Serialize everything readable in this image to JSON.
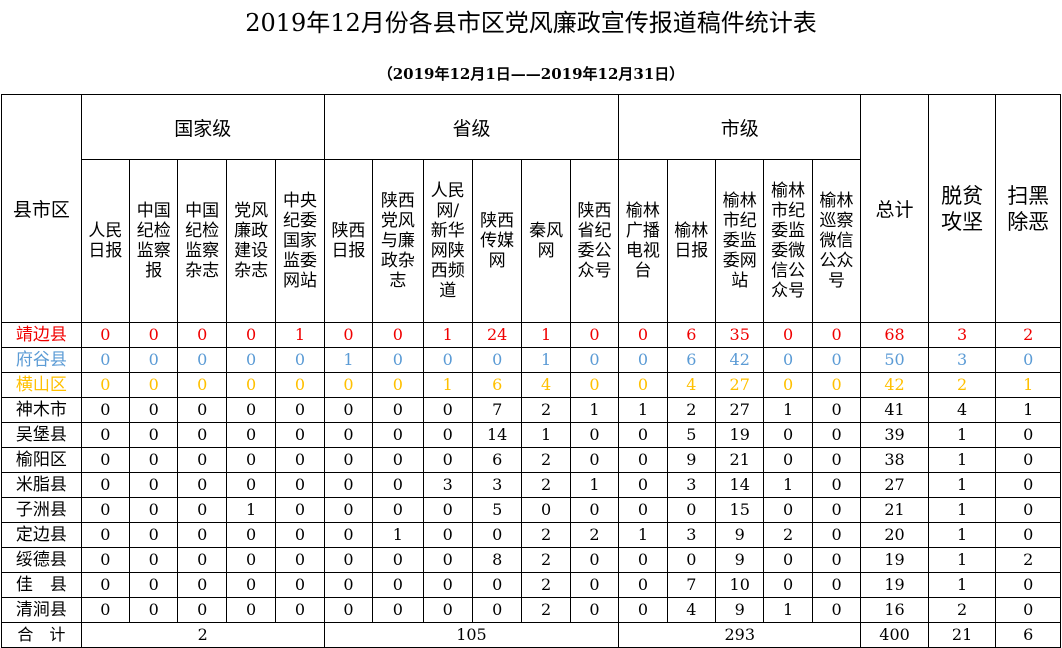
{
  "title": "2019年12月份各县市区党风廉政宣传报道稿件统计表",
  "subtitle": "（2019年12月1日——2019年12月31日）",
  "header": {
    "county_label": "县市区",
    "national_label": "国家级",
    "province_label": "省级",
    "city_label": "市级",
    "columns": [
      "人民\n日报",
      "中国\n纪检\n监察\n报",
      "中国\n纪检\n监察\n杂志",
      "党风\n廉政\n建设\n杂志",
      "中央\n纪委\n国家\n监委\n网站",
      "陕西\n日报",
      "陕西\n党风\n与廉\n政杂\n志",
      "人民\n网/\n新华\n网陕\n西频\n道",
      "陕西\n传媒\n网",
      "秦风\n网",
      "陕西\n省纪\n委公\n众号",
      "榆林\n广播\n电视\n台",
      "榆林\n日报",
      "榆林\n市纪\n委监\n委网\n站",
      "榆林\n市纪\n委监\n委微\n信公\n众号",
      "榆林\n巡察\n微信\n公众\n号",
      "总计",
      "脱贫\n攻坚",
      "扫黑\n除恶"
    ]
  },
  "rows": [
    {
      "county": "靖边县",
      "values": [
        "0",
        "0",
        "0",
        "0",
        "1",
        "0",
        "0",
        "1",
        "24",
        "1",
        "0",
        "0",
        "6",
        "35",
        "0",
        "0",
        "68",
        "3",
        "2"
      ]
    },
    {
      "county": "府谷县",
      "values": [
        "0",
        "0",
        "0",
        "0",
        "0",
        "1",
        "0",
        "0",
        "0",
        "1",
        "0",
        "0",
        "6",
        "42",
        "0",
        "0",
        "50",
        "3",
        "0"
      ]
    },
    {
      "county": "横山区",
      "values": [
        "0",
        "0",
        "0",
        "0",
        "0",
        "0",
        "0",
        "1",
        "6",
        "4",
        "0",
        "0",
        "4",
        "27",
        "0",
        "0",
        "42",
        "2",
        "1"
      ]
    },
    {
      "county": "神木市",
      "values": [
        "0",
        "0",
        "0",
        "0",
        "0",
        "0",
        "0",
        "0",
        "7",
        "2",
        "1",
        "1",
        "2",
        "27",
        "1",
        "0",
        "41",
        "4",
        "1"
      ]
    },
    {
      "county": "吴堡县",
      "values": [
        "0",
        "0",
        "0",
        "0",
        "0",
        "0",
        "0",
        "0",
        "14",
        "1",
        "0",
        "0",
        "5",
        "19",
        "0",
        "0",
        "39",
        "1",
        "0"
      ]
    },
    {
      "county": "榆阳区",
      "values": [
        "0",
        "0",
        "0",
        "0",
        "0",
        "0",
        "0",
        "0",
        "6",
        "2",
        "0",
        "0",
        "9",
        "21",
        "0",
        "0",
        "38",
        "1",
        "0"
      ]
    },
    {
      "county": "米脂县",
      "values": [
        "0",
        "0",
        "0",
        "0",
        "0",
        "0",
        "0",
        "3",
        "3",
        "2",
        "1",
        "0",
        "3",
        "14",
        "1",
        "0",
        "27",
        "1",
        "0"
      ]
    },
    {
      "county": "子洲县",
      "values": [
        "0",
        "0",
        "0",
        "1",
        "0",
        "0",
        "0",
        "0",
        "5",
        "0",
        "0",
        "0",
        "0",
        "15",
        "0",
        "0",
        "21",
        "1",
        "0"
      ]
    },
    {
      "county": "定边县",
      "values": [
        "0",
        "0",
        "0",
        "0",
        "0",
        "0",
        "1",
        "0",
        "0",
        "2",
        "2",
        "1",
        "3",
        "9",
        "2",
        "0",
        "20",
        "1",
        "0"
      ]
    },
    {
      "county": "绥德县",
      "values": [
        "0",
        "0",
        "0",
        "0",
        "0",
        "0",
        "0",
        "0",
        "8",
        "2",
        "0",
        "0",
        "0",
        "9",
        "0",
        "0",
        "19",
        "1",
        "2"
      ]
    },
    {
      "county": "佳　县",
      "values": [
        "0",
        "0",
        "0",
        "0",
        "0",
        "0",
        "0",
        "0",
        "0",
        "2",
        "0",
        "0",
        "7",
        "10",
        "0",
        "0",
        "19",
        "1",
        "0"
      ]
    },
    {
      "county": "清涧县",
      "values": [
        "0",
        "0",
        "0",
        "0",
        "0",
        "0",
        "0",
        "0",
        "0",
        "2",
        "0",
        "0",
        "4",
        "9",
        "1",
        "0",
        "16",
        "2",
        "0"
      ]
    }
  ],
  "total": {
    "label": "合　计",
    "national": "2",
    "province": "105",
    "city": "293",
    "grand": "400",
    "poverty": "21",
    "crime": "6"
  },
  "colors": {
    "row1": "#f00000",
    "row2": "#5b9bd5",
    "row3": "#ffc000"
  }
}
